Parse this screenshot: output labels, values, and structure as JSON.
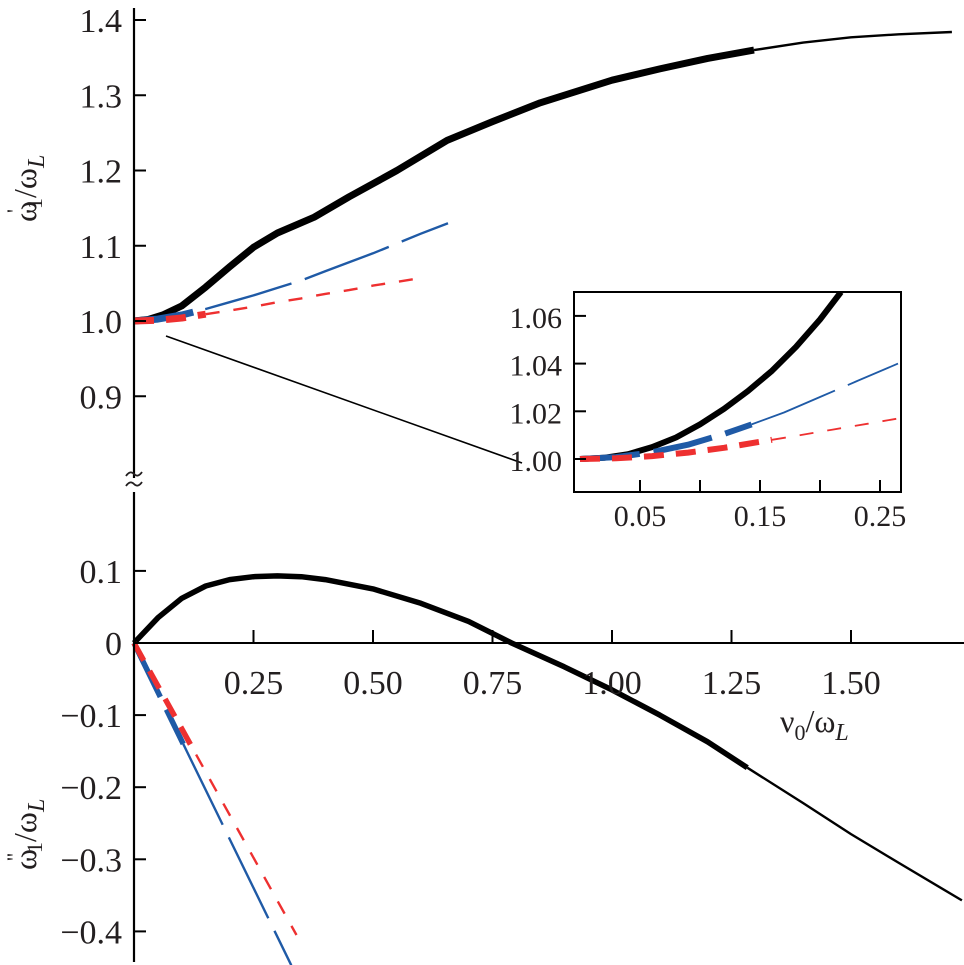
{
  "chart_data": [
    {
      "id": "upper",
      "type": "line",
      "xlabel": "",
      "ylabel": "ω'1/ωL",
      "ylabel_parts": {
        "main": "ω",
        "prime": "'",
        "sub": "1",
        "slash": "/ω",
        "sub2": "L"
      },
      "xlim": [
        0,
        1.74
      ],
      "ylim": [
        0.8,
        1.42
      ],
      "yticks": [
        0.9,
        1.0,
        1.1,
        1.2,
        1.3,
        1.4
      ],
      "ytick_labels": [
        "0.9",
        "1.0",
        "1.1",
        "1.2",
        "1.3",
        "1.4"
      ],
      "series": [
        {
          "name": "black",
          "color": "#000000",
          "style": "solid",
          "thick_until": 1.297,
          "x": [
            0,
            0.03,
            0.06,
            0.1,
            0.15,
            0.2,
            0.25,
            0.3,
            0.377,
            0.45,
            0.55,
            0.655,
            0.75,
            0.85,
            1.0,
            1.1,
            1.2,
            1.297,
            1.4,
            1.5,
            1.6,
            1.711
          ],
          "y": [
            1.0,
            1.002,
            1.008,
            1.02,
            1.045,
            1.072,
            1.098,
            1.117,
            1.138,
            1.165,
            1.2,
            1.24,
            1.265,
            1.29,
            1.32,
            1.335,
            1.349,
            1.36,
            1.37,
            1.377,
            1.381,
            1.384
          ]
        },
        {
          "name": "blue",
          "color": "#1f5aa6",
          "style": "long-dash",
          "thick_until": 0.149,
          "x": [
            0,
            0.05,
            0.1,
            0.15,
            0.2,
            0.25,
            0.3,
            0.35,
            0.4,
            0.45,
            0.5,
            0.55,
            0.6,
            0.657
          ],
          "y": [
            1.0,
            1.0025,
            1.008,
            1.016,
            1.025,
            1.034,
            1.044,
            1.054,
            1.066,
            1.078,
            1.09,
            1.103,
            1.116,
            1.13
          ]
        },
        {
          "name": "red",
          "color": "#ee3030",
          "style": "dashed",
          "thick_until": 0.15,
          "x": [
            0,
            0.05,
            0.1,
            0.15,
            0.2,
            0.25,
            0.3,
            0.35,
            0.4,
            0.45,
            0.5,
            0.55,
            0.608
          ],
          "y": [
            1.0,
            1.001,
            1.004,
            1.009,
            1.014,
            1.019,
            1.025,
            1.03,
            1.036,
            1.041,
            1.047,
            1.052,
            1.058
          ]
        }
      ]
    },
    {
      "id": "lower",
      "type": "line",
      "xlabel": "ν0/ωL",
      "xlabel_parts": {
        "main": "ν",
        "sub": "0",
        "slash": "/ω",
        "sub2": "L"
      },
      "ylabel": "ω''1/ωL",
      "ylabel_parts": {
        "main": "ω",
        "prime": "''",
        "sub": "1",
        "slash": "/ω",
        "sub2": "L"
      },
      "xlim": [
        0,
        1.74
      ],
      "ylim": [
        -0.44,
        0.2
      ],
      "xticks": [
        0.25,
        0.5,
        0.75,
        1.0,
        1.25,
        1.5
      ],
      "xtick_labels": [
        "0.25",
        "0.50",
        "0.75",
        "1.00",
        "1.25",
        "1.50"
      ],
      "yticks": [
        0.1,
        0,
        -0.1,
        -0.2,
        -0.3,
        -0.4
      ],
      "ytick_labels": [
        "0.1",
        "0",
        "−0.1",
        "−0.2",
        "−0.3",
        "−0.4"
      ],
      "series": [
        {
          "name": "black",
          "color": "#000000",
          "style": "solid",
          "thick_until": 1.283,
          "x": [
            0,
            0.05,
            0.1,
            0.15,
            0.2,
            0.25,
            0.3,
            0.35,
            0.4,
            0.5,
            0.6,
            0.7,
            0.79,
            0.9,
            1.0,
            1.1,
            1.2,
            1.283,
            1.4,
            1.5,
            1.6,
            1.732
          ],
          "y": [
            0,
            0.035,
            0.062,
            0.079,
            0.088,
            0.092,
            0.093,
            0.092,
            0.088,
            0.075,
            0.055,
            0.03,
            0.0,
            -0.033,
            -0.065,
            -0.1,
            -0.137,
            -0.173,
            -0.222,
            -0.265,
            -0.305,
            -0.357
          ]
        },
        {
          "name": "blue",
          "color": "#1f5aa6",
          "style": "long-dash",
          "thick_until": 0.103,
          "x": [
            0,
            0.329
          ],
          "y": [
            0,
            -0.447
          ]
        },
        {
          "name": "red",
          "color": "#ee3030",
          "style": "dashed",
          "thick_until": 0.13,
          "x": [
            0,
            0.34
          ],
          "y": [
            0,
            -0.405
          ]
        }
      ]
    },
    {
      "id": "inset",
      "type": "line",
      "xlim": [
        -0.005,
        0.2675
      ],
      "ylim": [
        0.986,
        1.07
      ],
      "xticks": [
        0.05,
        0.1,
        0.15,
        0.2,
        0.25
      ],
      "xtick_labels": [
        "0.05",
        "",
        "0.15",
        "",
        "0.25"
      ],
      "yticks": [
        1.0,
        1.02,
        1.04,
        1.06
      ],
      "ytick_labels": [
        "1.00",
        "1.02",
        "1.04",
        "1.06"
      ],
      "series": [
        {
          "name": "black",
          "color": "#000000",
          "style": "solid",
          "x": [
            0,
            0.02,
            0.04,
            0.06,
            0.08,
            0.1,
            0.12,
            0.14,
            0.16,
            0.18,
            0.2,
            0.2175
          ],
          "y": [
            1.0,
            1.0005,
            1.002,
            1.005,
            1.009,
            1.0145,
            1.021,
            1.0285,
            1.037,
            1.047,
            1.0585,
            1.07
          ]
        },
        {
          "name": "blue",
          "color": "#1f5aa6",
          "style": "long-dash",
          "thick_until": 0.143,
          "x": [
            0,
            0.03,
            0.06,
            0.09,
            0.12,
            0.143,
            0.17,
            0.2,
            0.23,
            0.265
          ],
          "y": [
            1.0,
            1.0008,
            1.0028,
            1.006,
            1.0105,
            1.0145,
            1.0195,
            1.026,
            1.0325,
            1.04
          ]
        },
        {
          "name": "red",
          "color": "#ee3030",
          "style": "dashed",
          "thick_until": 0.16,
          "x": [
            0,
            0.03,
            0.06,
            0.09,
            0.12,
            0.15,
            0.18,
            0.21,
            0.24,
            0.265
          ],
          "y": [
            1.0,
            1.0003,
            1.0012,
            1.0027,
            1.0047,
            1.0072,
            1.0097,
            1.0123,
            1.0148,
            1.017
          ]
        }
      ]
    }
  ]
}
